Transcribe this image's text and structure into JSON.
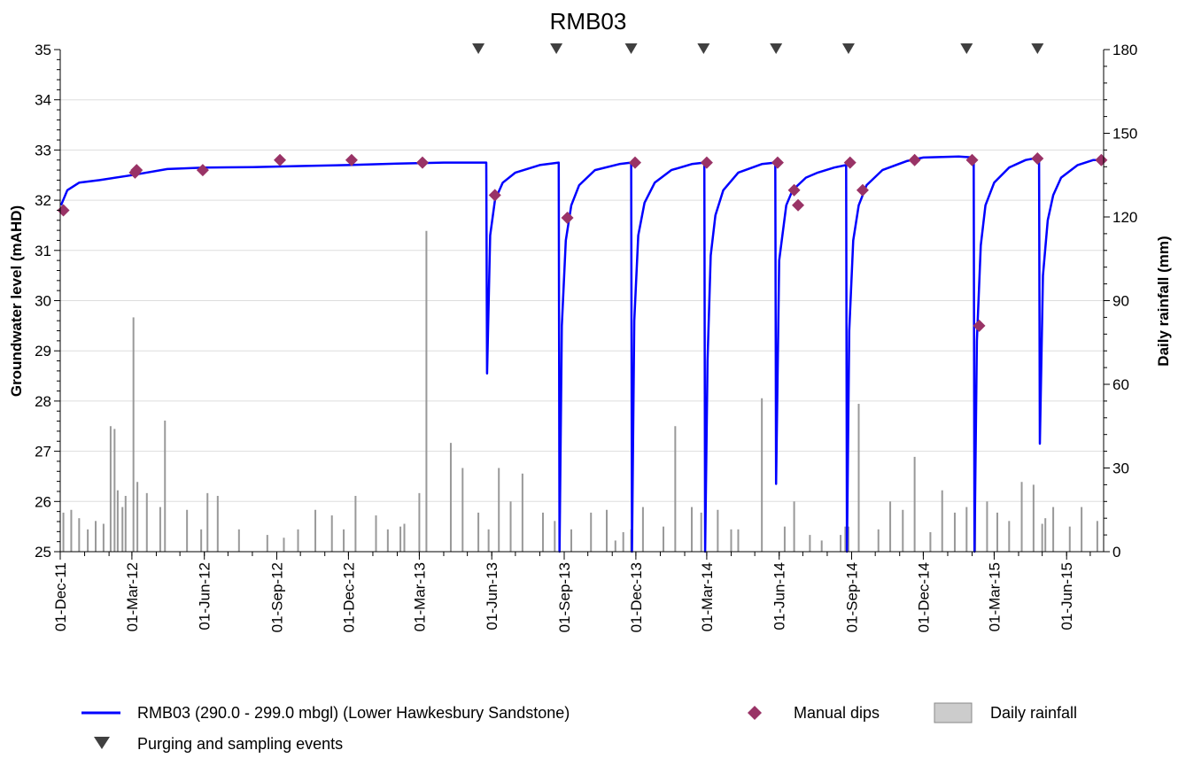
{
  "chart_data": {
    "type": "line",
    "title": "RMB03",
    "ylabel": "Groundwater level (mAHD)",
    "y2label": "Daily rainfall (mm)",
    "xlabel": "",
    "ylim": [
      25,
      35
    ],
    "y2lim": [
      0,
      180
    ],
    "yticks": [
      25,
      26,
      27,
      28,
      29,
      30,
      31,
      32,
      33,
      34,
      35
    ],
    "y2ticks": [
      0,
      30,
      60,
      90,
      120,
      150,
      180
    ],
    "xlim": [
      "2011-12-01",
      "2015-07-18"
    ],
    "xtick_labels": [
      {
        "date": "2011-12-01",
        "label": "01-Dec-11"
      },
      {
        "date": "2012-03-01",
        "label": "01-Mar-12"
      },
      {
        "date": "2012-06-01",
        "label": "01-Jun-12"
      },
      {
        "date": "2012-09-01",
        "label": "01-Sep-12"
      },
      {
        "date": "2012-12-01",
        "label": "01-Dec-12"
      },
      {
        "date": "2013-03-01",
        "label": "01-Mar-13"
      },
      {
        "date": "2013-06-01",
        "label": "01-Jun-13"
      },
      {
        "date": "2013-09-01",
        "label": "01-Sep-13"
      },
      {
        "date": "2013-12-01",
        "label": "01-Dec-13"
      },
      {
        "date": "2014-03-01",
        "label": "01-Mar-14"
      },
      {
        "date": "2014-06-01",
        "label": "01-Jun-14"
      },
      {
        "date": "2014-09-01",
        "label": "01-Sep-14"
      },
      {
        "date": "2014-12-01",
        "label": "01-Dec-14"
      },
      {
        "date": "2015-03-01",
        "label": "01-Mar-15"
      },
      {
        "date": "2015-06-01",
        "label": "01-Jun-15"
      }
    ],
    "grid": true,
    "legend_position": "bottom",
    "series": [
      {
        "name": "RMB03 (290.0 - 299.0 mbgl) (Lower Hawkesbury Sandstone)",
        "type": "line",
        "color": "#0000ff",
        "x": [
          "2011-12-02",
          "2011-12-10",
          "2011-12-25",
          "2012-01-20",
          "2012-03-01",
          "2012-04-15",
          "2012-06-01",
          "2012-08-01",
          "2012-10-01",
          "2012-12-01",
          "2013-02-01",
          "2013-04-01",
          "2013-05-25",
          "2013-05-26",
          "2013-05-30",
          "2013-06-05",
          "2013-06-15",
          "2013-07-01",
          "2013-08-01",
          "2013-08-25",
          "2013-08-26",
          "2013-08-29",
          "2013-09-03",
          "2013-09-10",
          "2013-09-20",
          "2013-10-10",
          "2013-11-10",
          "2013-11-25",
          "2013-11-26",
          "2013-11-29",
          "2013-12-04",
          "2013-12-12",
          "2013-12-25",
          "2014-01-15",
          "2014-02-10",
          "2014-02-26",
          "2014-02-27",
          "2014-03-02",
          "2014-03-06",
          "2014-03-12",
          "2014-03-22",
          "2014-04-10",
          "2014-05-10",
          "2014-05-27",
          "2014-05-28",
          "2014-06-01",
          "2014-06-10",
          "2014-06-18",
          "2014-07-05",
          "2014-07-20",
          "2014-08-10",
          "2014-08-25",
          "2014-08-26",
          "2014-08-29",
          "2014-09-03",
          "2014-09-10",
          "2014-09-20",
          "2014-10-10",
          "2014-11-10",
          "2014-12-01",
          "2015-01-15",
          "2015-02-03",
          "2015-02-04",
          "2015-02-07",
          "2015-02-12",
          "2015-02-18",
          "2015-03-01",
          "2015-03-20",
          "2015-04-10",
          "2015-04-27",
          "2015-04-28",
          "2015-05-02",
          "2015-05-08",
          "2015-05-15",
          "2015-05-25",
          "2015-06-15",
          "2015-07-05",
          "2015-07-15"
        ],
        "y": [
          31.9,
          32.2,
          32.35,
          32.4,
          32.5,
          32.62,
          32.65,
          32.66,
          32.68,
          32.7,
          32.73,
          32.75,
          32.75,
          28.55,
          31.3,
          32.0,
          32.35,
          32.55,
          32.7,
          32.75,
          25.0,
          29.5,
          31.2,
          31.9,
          32.3,
          32.6,
          32.72,
          32.75,
          25.0,
          29.6,
          31.3,
          31.95,
          32.35,
          32.6,
          32.72,
          32.75,
          25.0,
          28.8,
          30.9,
          31.7,
          32.2,
          32.55,
          32.72,
          32.75,
          26.35,
          30.8,
          31.9,
          32.2,
          32.45,
          32.55,
          32.65,
          32.7,
          25.0,
          29.4,
          31.2,
          31.9,
          32.3,
          32.6,
          32.78,
          32.85,
          32.87,
          32.85,
          25.0,
          29.2,
          31.1,
          31.9,
          32.35,
          32.65,
          32.8,
          32.85,
          27.15,
          30.5,
          31.6,
          32.1,
          32.45,
          32.7,
          32.8,
          32.8
        ]
      },
      {
        "name": "Manual dips",
        "type": "scatter",
        "color": "#993366",
        "x": [
          "2011-12-05",
          "2012-03-05",
          "2012-03-07",
          "2012-05-30",
          "2012-09-05",
          "2012-12-05",
          "2013-03-05",
          "2013-06-05",
          "2013-09-05",
          "2013-11-30",
          "2014-03-01",
          "2014-05-30",
          "2014-06-20",
          "2014-06-25",
          "2014-08-30",
          "2014-09-15",
          "2014-11-20",
          "2015-02-01",
          "2015-02-10",
          "2015-04-25",
          "2015-07-15"
        ],
        "y": [
          31.8,
          32.55,
          32.6,
          32.6,
          32.8,
          32.8,
          32.75,
          32.1,
          31.65,
          32.75,
          32.75,
          32.75,
          32.2,
          31.9,
          32.75,
          32.2,
          32.8,
          32.8,
          29.5,
          32.83,
          32.8
        ]
      },
      {
        "name": "Daily rainfall",
        "type": "bar",
        "axis": "right",
        "color": "#999999",
        "x": [
          "2011-12-05",
          "2011-12-15",
          "2011-12-25",
          "2012-01-05",
          "2012-01-15",
          "2012-01-25",
          "2012-02-03",
          "2012-02-08",
          "2012-02-12",
          "2012-02-18",
          "2012-02-22",
          "2012-03-03",
          "2012-03-08",
          "2012-03-20",
          "2012-04-06",
          "2012-04-12",
          "2012-05-10",
          "2012-05-28",
          "2012-06-05",
          "2012-06-18",
          "2012-07-15",
          "2012-08-20",
          "2012-09-10",
          "2012-09-28",
          "2012-10-20",
          "2012-11-10",
          "2012-11-25",
          "2012-12-10",
          "2013-01-05",
          "2013-01-20",
          "2013-02-05",
          "2013-02-10",
          "2013-03-01",
          "2013-03-10",
          "2013-04-10",
          "2013-04-25",
          "2013-05-15",
          "2013-05-28",
          "2013-06-10",
          "2013-06-25",
          "2013-07-10",
          "2013-08-05",
          "2013-08-20",
          "2013-09-10",
          "2013-10-05",
          "2013-10-25",
          "2013-11-05",
          "2013-11-15",
          "2013-11-25",
          "2013-12-10",
          "2014-01-05",
          "2014-01-20",
          "2014-02-10",
          "2014-02-22",
          "2014-03-15",
          "2014-04-01",
          "2014-04-10",
          "2014-05-10",
          "2014-06-08",
          "2014-06-20",
          "2014-07-10",
          "2014-07-25",
          "2014-08-18",
          "2014-08-24",
          "2014-08-28",
          "2014-09-10",
          "2014-10-05",
          "2014-10-20",
          "2014-11-05",
          "2014-11-20",
          "2014-12-10",
          "2014-12-25",
          "2015-01-10",
          "2015-01-25",
          "2015-02-05",
          "2015-02-20",
          "2015-03-05",
          "2015-03-20",
          "2015-04-05",
          "2015-04-20",
          "2015-05-01",
          "2015-05-05",
          "2015-05-15",
          "2015-06-05",
          "2015-06-20",
          "2015-07-10"
        ],
        "values": [
          14,
          15,
          12,
          8,
          11,
          10,
          45,
          44,
          22,
          16,
          20,
          84,
          25,
          21,
          16,
          47,
          15,
          8,
          21,
          20,
          8,
          6,
          5,
          8,
          15,
          13,
          8,
          20,
          13,
          8,
          9,
          10,
          21,
          115,
          39,
          30,
          14,
          8,
          30,
          18,
          28,
          14,
          11,
          8,
          14,
          15,
          4,
          7,
          8,
          16,
          9,
          45,
          16,
          14,
          15,
          8,
          8,
          55,
          9,
          18,
          6,
          4,
          6,
          9,
          9,
          53,
          8,
          18,
          15,
          34,
          7,
          22,
          14,
          16,
          40,
          18,
          14,
          11,
          25,
          24,
          10,
          12,
          16,
          9,
          16,
          11
        ]
      },
      {
        "name": "Purging and sampling events",
        "type": "scatter",
        "color": "#404040",
        "marker": "triangle-down",
        "x": [
          "2013-05-15",
          "2013-08-22",
          "2013-11-25",
          "2014-02-25",
          "2014-05-28",
          "2014-08-28",
          "2015-01-25",
          "2015-04-25"
        ]
      }
    ]
  }
}
